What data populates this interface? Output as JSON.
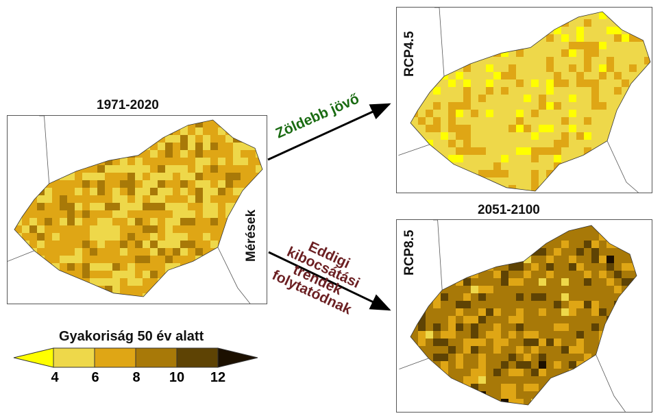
{
  "left_panel": {
    "period": "1971-2020",
    "label": "Mérések"
  },
  "right_top": {
    "label": "RCP4.5"
  },
  "right_bottom": {
    "period": "2051-2100",
    "label": "RCP8.5"
  },
  "arrows": {
    "upper_text": "Zöldebb jövő",
    "upper_color": "#1a6b12",
    "lower_lines": [
      "Eddigi",
      "kibocsátási",
      "trendek",
      "folytatódnak"
    ],
    "lower_color": "#6b1f22"
  },
  "colorbar": {
    "title": "Gyakoriság 50 év alatt",
    "ticks": [
      "4",
      "6",
      "8",
      "10",
      "12"
    ],
    "colors": [
      "#ffff00",
      "#eed84a",
      "#dfa615",
      "#a87908",
      "#5e4304",
      "#1c1000"
    ]
  }
}
